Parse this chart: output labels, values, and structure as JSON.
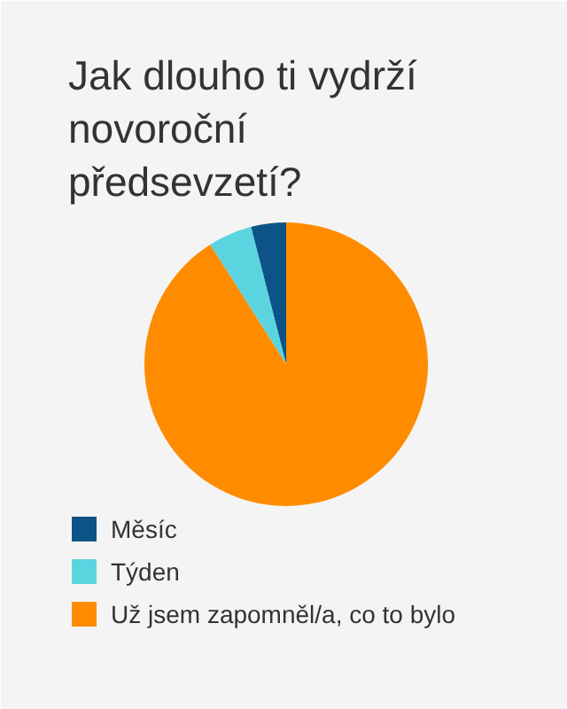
{
  "chart_data": {
    "type": "pie",
    "title": "Jak dlouho ti vydrží novoroční předsevzetí?",
    "categories": [
      "Měsíc",
      "Týden",
      "Už jsem zapomněl/a, co to bylo"
    ],
    "values": [
      4,
      5,
      91
    ],
    "colors": [
      "#0d5388",
      "#5ad5e0",
      "#ff8c00"
    ],
    "legend": "bottom left"
  }
}
